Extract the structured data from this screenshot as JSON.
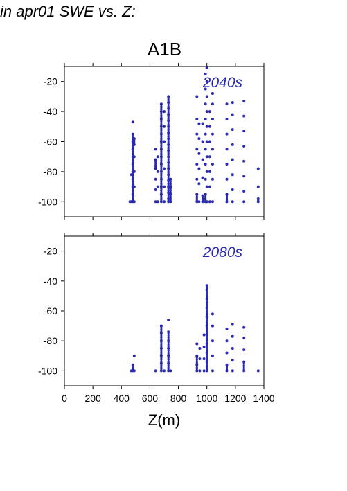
{
  "page": {
    "title": "in apr01 SWE vs. Z:",
    "chart_title": "A1B"
  },
  "colors": {
    "points": "#2a2ab0",
    "panel_label": "#2a2ab0",
    "axis": "#000000"
  },
  "chart_data": {
    "type": "scatter",
    "title": "A1B",
    "xlabel": "Z(m)",
    "xlim": [
      0,
      1400
    ],
    "xticks": [
      0,
      200,
      400,
      600,
      800,
      1000,
      1200,
      1400
    ],
    "ylim": [
      -110,
      -10
    ],
    "yticks": [
      -20,
      -40,
      -60,
      -80,
      -100
    ],
    "grid": false,
    "panels": [
      {
        "label": "2040s",
        "columns": [
          {
            "x": 460,
            "y": [
              -100
            ]
          },
          {
            "x": 470,
            "y": [
              -82,
              -100
            ]
          },
          {
            "x": 480,
            "y": [
              -47,
              -55,
              -60,
              -65,
              -70,
              -75,
              -80,
              -85,
              -90,
              -95,
              -100
            ]
          },
          {
            "x": 490,
            "y": [
              -58,
              -62,
              -70,
              -80,
              -90,
              -100
            ]
          },
          {
            "x": 640,
            "y": [
              -65,
              -72,
              -78,
              -85,
              -92,
              -100
            ]
          },
          {
            "x": 655,
            "y": [
              -70,
              -80,
              -90,
              -100
            ]
          },
          {
            "x": 680,
            "y": [
              -35,
              -40,
              -45,
              -50,
              -55,
              -60,
              -65,
              -70,
              -75,
              -80,
              -85,
              -90,
              -95,
              -100
            ]
          },
          {
            "x": 700,
            "y": [
              -40,
              -50,
              -60,
              -78,
              -90,
              -100
            ]
          },
          {
            "x": 730,
            "y": [
              -30,
              -34,
              -38,
              -42,
              -46,
              -50,
              -54,
              -58,
              -62,
              -66,
              -70,
              -74,
              -78,
              -82,
              -86,
              -90,
              -94,
              -98,
              -100
            ]
          },
          {
            "x": 745,
            "y": [
              -85,
              -90,
              -95,
              -100
            ]
          },
          {
            "x": 930,
            "y": [
              -30,
              -45,
              -55,
              -65,
              -75,
              -85,
              -95,
              -100
            ]
          },
          {
            "x": 945,
            "y": [
              -48,
              -58,
              -68,
              -78,
              -88,
              -100
            ]
          },
          {
            "x": 970,
            "y": [
              -48,
              -60,
              -72,
              -84,
              -96,
              -100
            ]
          },
          {
            "x": 990,
            "y": [
              -15,
              -25,
              -35,
              -45,
              -55,
              -65,
              -75,
              -85,
              -95,
              -100
            ]
          },
          {
            "x": 1000,
            "y": [
              -11,
              -20,
              -30,
              -40,
              -50,
              -60,
              -70,
              -80,
              -90,
              -100
            ]
          },
          {
            "x": 1020,
            "y": [
              -40,
              -50,
              -60,
              -70,
              -80,
              -90,
              -100
            ]
          },
          {
            "x": 1040,
            "y": [
              -28,
              -35,
              -45,
              -55,
              -65,
              -75,
              -85,
              -100
            ]
          },
          {
            "x": 1140,
            "y": [
              -35,
              -45,
              -55,
              -65,
              -75,
              -85,
              -95,
              -100
            ]
          },
          {
            "x": 1180,
            "y": [
              -34,
              -42,
              -52,
              -62,
              -72,
              -82,
              -92,
              -100
            ]
          },
          {
            "x": 1260,
            "y": [
              -33,
              -43,
              -53,
              -63,
              -73,
              -83,
              -93,
              -100
            ]
          },
          {
            "x": 1360,
            "y": [
              -78,
              -90,
              -98,
              -100
            ]
          }
        ]
      },
      {
        "label": "2080s",
        "columns": [
          {
            "x": 470,
            "y": [
              -100
            ]
          },
          {
            "x": 480,
            "y": [
              -96,
              -100
            ]
          },
          {
            "x": 490,
            "y": [
              -90,
              -100
            ]
          },
          {
            "x": 640,
            "y": [
              -100
            ]
          },
          {
            "x": 680,
            "y": [
              -70,
              -75,
              -80,
              -85,
              -90,
              -95,
              -100
            ]
          },
          {
            "x": 700,
            "y": [
              -100
            ]
          },
          {
            "x": 730,
            "y": [
              -66,
              -74,
              -80,
              -85,
              -90,
              -95,
              -100
            ]
          },
          {
            "x": 745,
            "y": [
              -100
            ]
          },
          {
            "x": 930,
            "y": [
              -82,
              -90,
              -96,
              -100
            ]
          },
          {
            "x": 950,
            "y": [
              -85,
              -92,
              -100
            ]
          },
          {
            "x": 980,
            "y": [
              -76,
              -84,
              -92,
              -100
            ]
          },
          {
            "x": 1000,
            "y": [
              -43,
              -46,
              -52,
              -58,
              -64,
              -70,
              -76,
              -82,
              -88,
              -94,
              -100
            ]
          },
          {
            "x": 1040,
            "y": [
              -62,
              -70,
              -80,
              -90,
              -100
            ]
          },
          {
            "x": 1140,
            "y": [
              -72,
              -80,
              -88,
              -96,
              -100
            ]
          },
          {
            "x": 1180,
            "y": [
              -69,
              -77,
              -85,
              -93,
              -100
            ]
          },
          {
            "x": 1260,
            "y": [
              -71,
              -78,
              -86,
              -94,
              -100
            ]
          },
          {
            "x": 1360,
            "y": [
              -100
            ]
          }
        ]
      }
    ]
  }
}
